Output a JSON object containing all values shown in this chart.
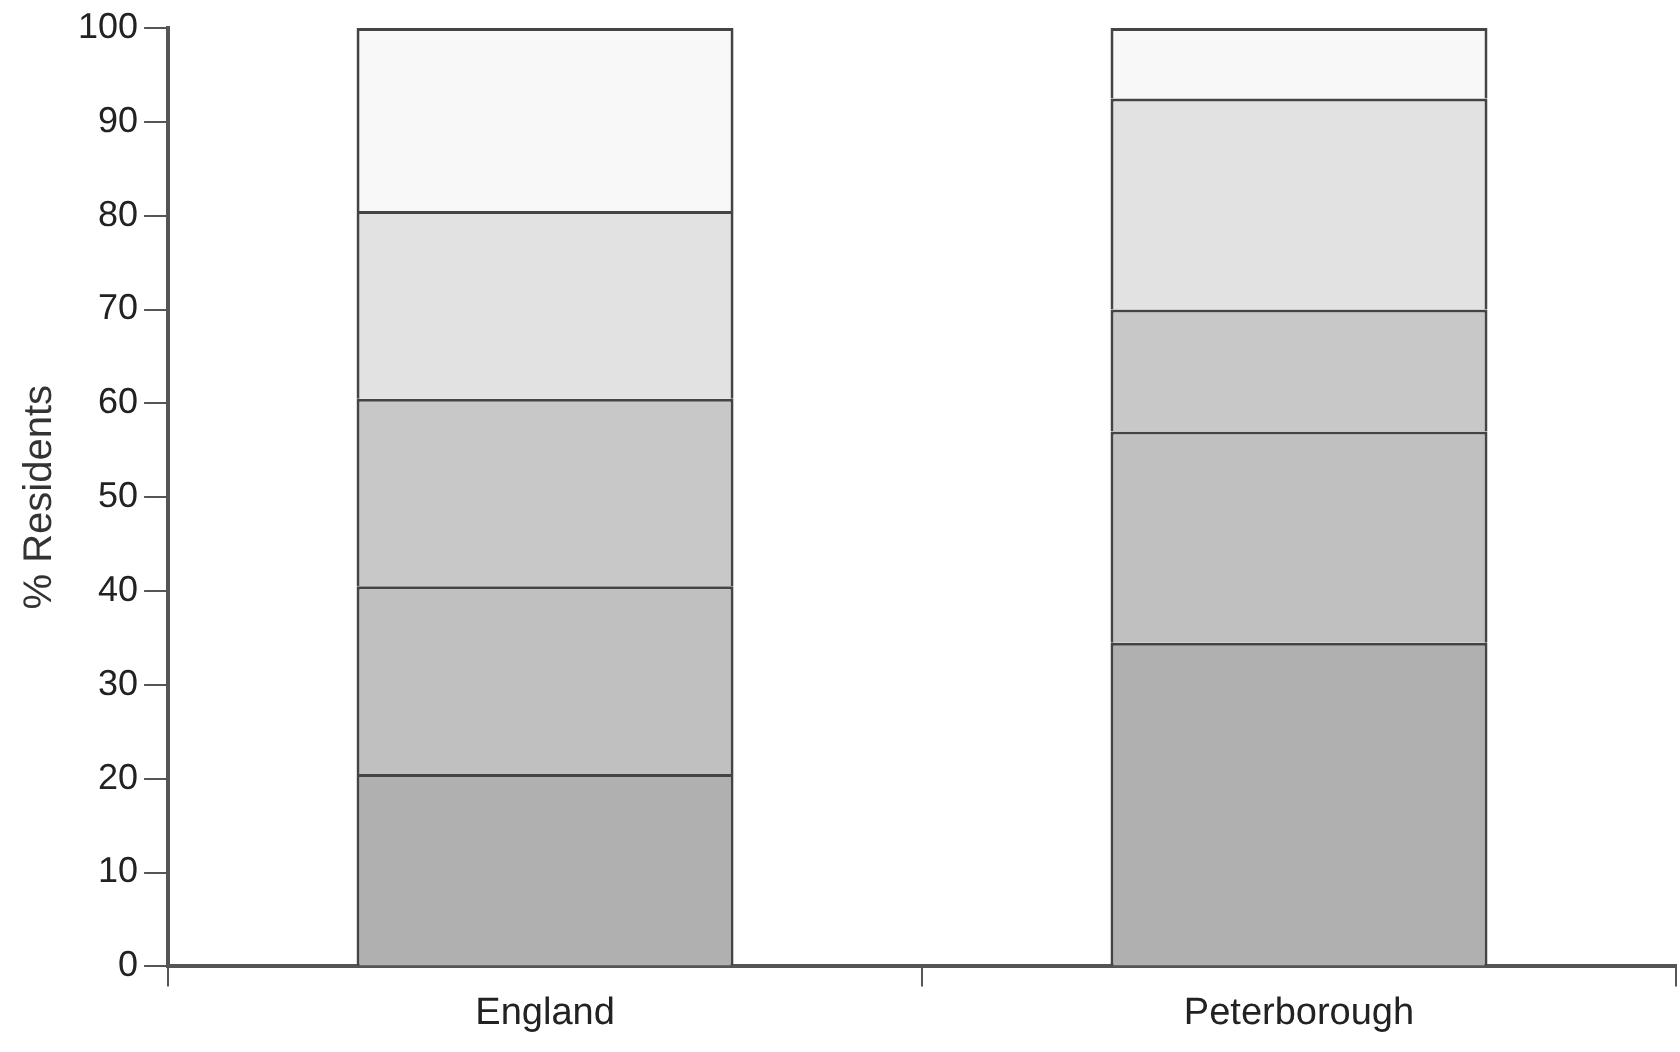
{
  "chart_data": {
    "type": "bar",
    "stacked": true,
    "ylabel": "% Residents",
    "categories": [
      "England",
      "Peterborough"
    ],
    "series": [
      {
        "color": "#b0b0b0",
        "values": [
          20.5,
          34.5
        ]
      },
      {
        "color": "#c0c0c0",
        "values": [
          20,
          22.5
        ]
      },
      {
        "color": "#c8c8c8",
        "values": [
          20,
          13
        ]
      },
      {
        "color": "#e2e2e2",
        "values": [
          20,
          22.5
        ]
      },
      {
        "color": "#f8f8f8",
        "values": [
          19.5,
          7.5
        ]
      }
    ],
    "ylim": [
      0,
      100
    ],
    "yticks": [
      0,
      10,
      20,
      30,
      40,
      50,
      60,
      70,
      80,
      90,
      100
    ],
    "grid": false,
    "legend": false
  }
}
